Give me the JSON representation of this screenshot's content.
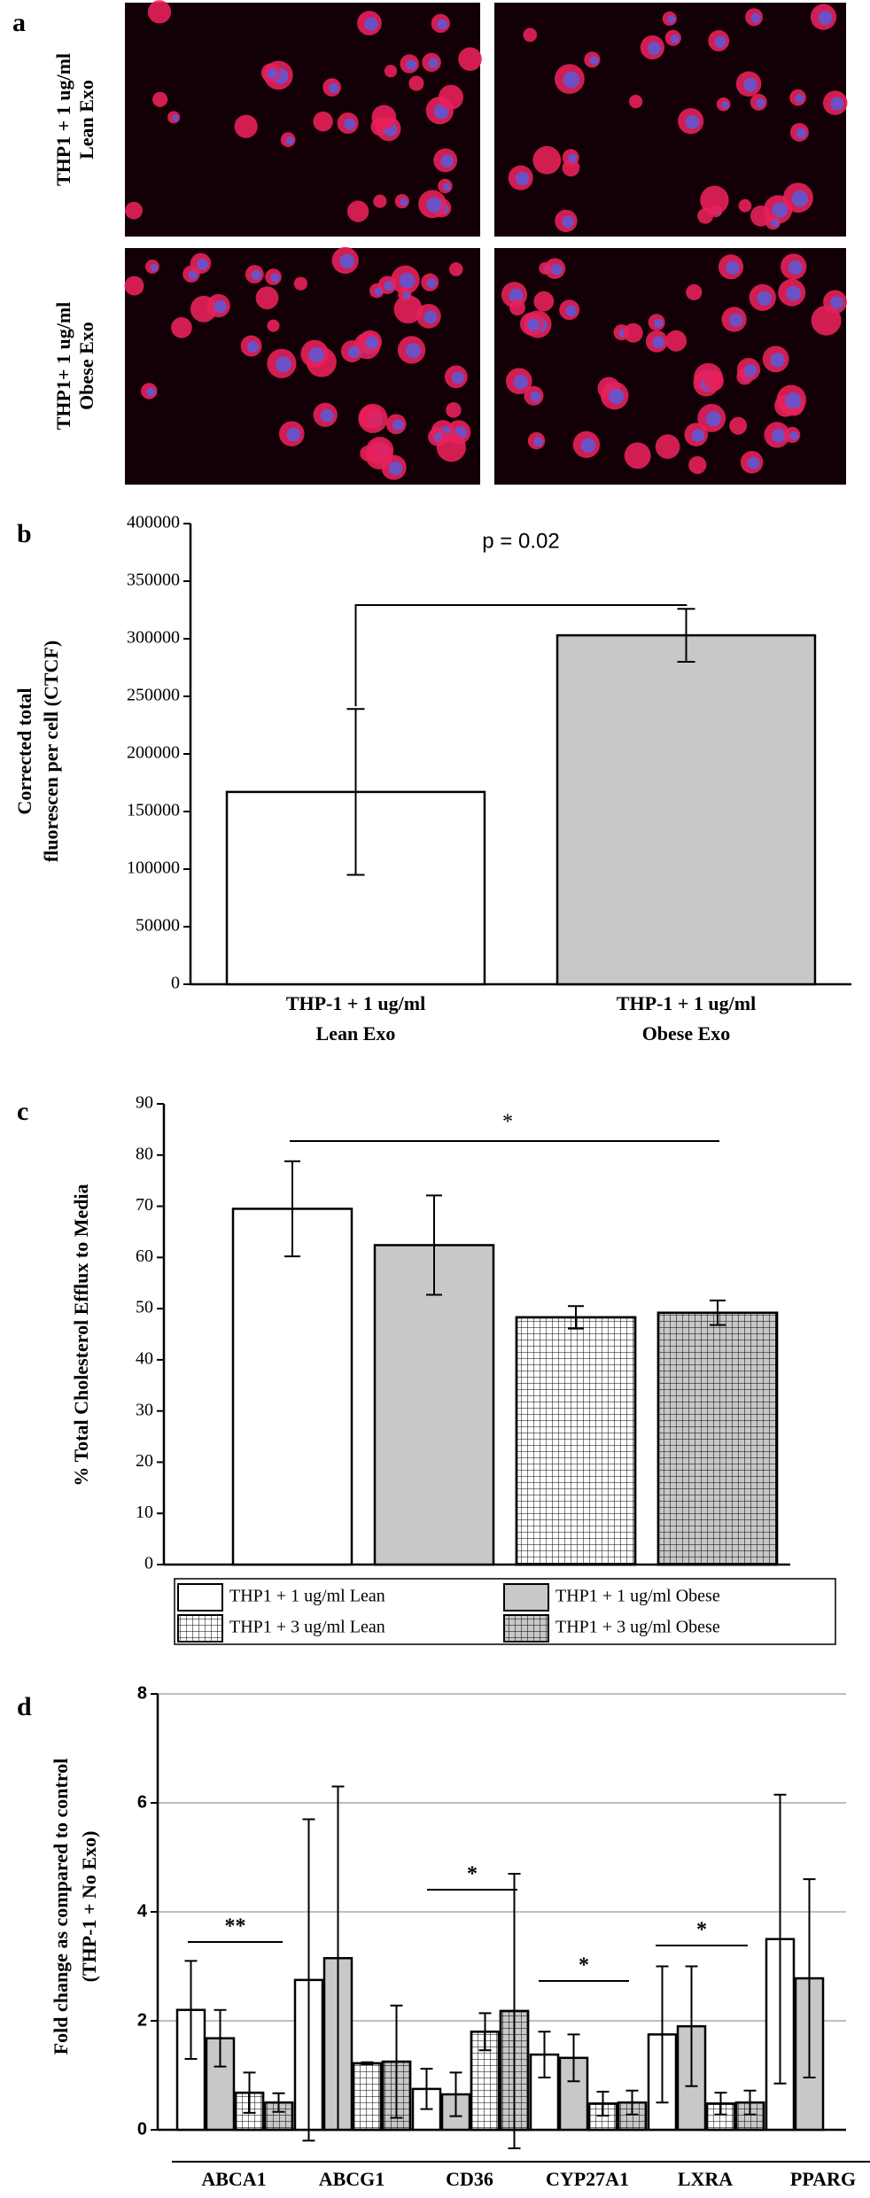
{
  "panel_a": {
    "label": "a",
    "row_labels": [
      [
        "THP1 + 1 ug/ml",
        "Lean Exo"
      ],
      [
        "THP1+ 1 ug/ml",
        "Obese Exo"
      ]
    ]
  },
  "chart_data": [
    {
      "type": "bar",
      "label": "b",
      "y_label": [
        "Corrected total",
        "fluorescen per cell (CTCF)"
      ],
      "categories": [
        [
          "THP-1 + 1 ug/ml",
          "Lean Exo"
        ],
        [
          "THP-1 + 1 ug/ml",
          "Obese Exo"
        ]
      ],
      "values": [
        167000,
        303000
      ],
      "errors": [
        72000,
        23000
      ],
      "colors": [
        "#ffffff",
        "#c8c8c8"
      ],
      "ylim": [
        0,
        400000
      ],
      "yticks": [
        0,
        50000,
        100000,
        150000,
        200000,
        250000,
        300000,
        350000,
        400000
      ],
      "annotations": [
        "p = 0.02"
      ]
    },
    {
      "type": "bar",
      "label": "c",
      "y_label": [
        "% Total Cholesterol Efflux to Media"
      ],
      "series": [
        {
          "name": "THP1 + 1 ug/ml Lean",
          "color": "#ffffff",
          "hatch": false,
          "values": [
            69.5
          ],
          "errors": [
            9.3
          ]
        },
        {
          "name": "THP1 + 1 ug/ml Obese",
          "color": "#c8c8c8",
          "hatch": false,
          "values": [
            62.4
          ],
          "errors": [
            9.7
          ]
        },
        {
          "name": "THP1 + 3 ug/ml Lean",
          "color": "#ffffff",
          "hatch": true,
          "values": [
            48.3
          ],
          "errors": [
            2.2
          ]
        },
        {
          "name": "THP1 + 3 ug/ml Obese",
          "color": "#c8c8c8",
          "hatch": true,
          "values": [
            49.2
          ],
          "errors": [
            2.4
          ]
        }
      ],
      "ylim": [
        0,
        90
      ],
      "yticks": [
        0,
        10,
        20,
        30,
        40,
        50,
        60,
        70,
        80,
        90
      ],
      "annotations": [
        "*"
      ]
    },
    {
      "type": "grouped_bar",
      "label": "d",
      "y_label": [
        "Fold change as compared to control",
        "(THP-1 + No Exo)"
      ],
      "categories": [
        "ABCA1",
        "ABCG1",
        "CD36",
        "CYP27A1",
        "LXRA",
        "PPARG"
      ],
      "series": [
        {
          "color": "#ffffff",
          "hatch": false,
          "values": [
            2.2,
            2.75,
            0.75,
            1.38,
            1.75,
            3.5
          ],
          "errors": [
            0.9,
            2.95,
            0.37,
            0.42,
            1.25,
            2.65
          ]
        },
        {
          "color": "#c8c8c8",
          "hatch": false,
          "values": [
            1.68,
            3.15,
            0.65,
            1.32,
            1.9,
            2.78
          ],
          "errors": [
            0.52,
            3.15,
            0.4,
            0.43,
            1.1,
            1.82
          ]
        },
        {
          "color": "#ffffff",
          "hatch": true,
          "values": [
            0.68,
            1.22,
            1.8,
            0.48,
            0.48,
            null
          ],
          "errors": [
            0.37,
            0.02,
            0.34,
            0.22,
            0.2,
            null
          ]
        },
        {
          "color": "#c8c8c8",
          "hatch": true,
          "values": [
            0.5,
            1.25,
            2.18,
            0.5,
            0.5,
            null
          ],
          "errors": [
            0.17,
            1.03,
            2.52,
            0.22,
            0.22,
            null
          ]
        }
      ],
      "ylim": [
        0,
        8
      ],
      "yticks": [
        0,
        2,
        4,
        6,
        8
      ],
      "grid": true,
      "annotations": [
        "**",
        "*",
        "*",
        "*"
      ]
    }
  ]
}
